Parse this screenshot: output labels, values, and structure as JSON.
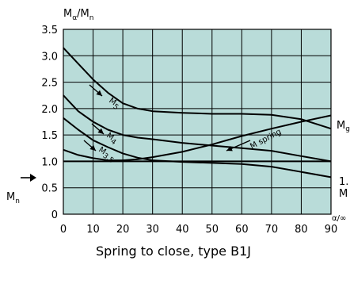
{
  "chart_data": {
    "type": "line",
    "title": "Spring to close, type B1J",
    "ylabel": {
      "main": "M",
      "sub1": "α",
      "slash": "/M",
      "sub2": "n"
    },
    "xlabel": "α/∞",
    "xlim": [
      0,
      90
    ],
    "ylim": [
      0,
      3.5
    ],
    "x_ticks": [
      0,
      10,
      20,
      30,
      40,
      50,
      60,
      70,
      80,
      90
    ],
    "y_ticks": [
      0,
      0.5,
      1.0,
      1.5,
      2.0,
      2.5,
      3.0,
      3.5
    ],
    "y_tick_labels": [
      "0",
      "0.5",
      "1.0",
      "1.5",
      "2.0",
      "2.5",
      "3.0",
      "3.5"
    ],
    "grid": true,
    "background": "#b9dcd9",
    "series": [
      {
        "name": "M5",
        "x": [
          0,
          5,
          10,
          15,
          20,
          25,
          30,
          40,
          50,
          60,
          70,
          80,
          90
        ],
        "values": [
          3.15,
          2.85,
          2.55,
          2.3,
          2.1,
          2.0,
          1.95,
          1.92,
          1.9,
          1.9,
          1.88,
          1.8,
          1.62
        ]
      },
      {
        "name": "M4",
        "x": [
          0,
          5,
          10,
          15,
          20,
          25,
          30,
          40,
          50,
          60,
          70,
          80,
          90
        ],
        "values": [
          2.25,
          1.95,
          1.75,
          1.6,
          1.5,
          1.45,
          1.42,
          1.35,
          1.3,
          1.25,
          1.2,
          1.1,
          1.0
        ]
      },
      {
        "name": "M3.5",
        "x": [
          0,
          5,
          10,
          15,
          20,
          25,
          30,
          40,
          50,
          60,
          70,
          80,
          90
        ],
        "values": [
          1.82,
          1.6,
          1.4,
          1.27,
          1.15,
          1.07,
          1.02,
          0.99,
          0.97,
          0.95,
          0.9,
          0.8,
          0.7
        ]
      },
      {
        "name": "M spring",
        "x": [
          0,
          5,
          10,
          15,
          20,
          25,
          30,
          40,
          50,
          60,
          70,
          80,
          90
        ],
        "values": [
          1.22,
          1.12,
          1.06,
          1.02,
          1.02,
          1.04,
          1.08,
          1.18,
          1.32,
          1.48,
          1.62,
          1.75,
          1.87
        ]
      },
      {
        "name": "1.0 line",
        "x": [
          0,
          90
        ],
        "values": [
          1.0,
          1.0
        ]
      }
    ],
    "annotations": {
      "m5": {
        "main": "M",
        "sub": "5",
        "at": [
          15,
          2.55
        ]
      },
      "m4": {
        "main": "M",
        "sub": "4",
        "at": [
          14,
          1.72
        ]
      },
      "m35": {
        "main": "M",
        "sub": "3.5",
        "at": [
          12,
          1.42
        ]
      },
      "mspring": {
        "text": "M spring",
        "at": [
          55,
          1.62
        ]
      }
    },
    "left_label": {
      "main": "M",
      "sub": "n"
    },
    "right_labels": {
      "mg": "M",
      "mg_sub": "g",
      "one_line1": "1.",
      "one_line2": "M"
    }
  }
}
